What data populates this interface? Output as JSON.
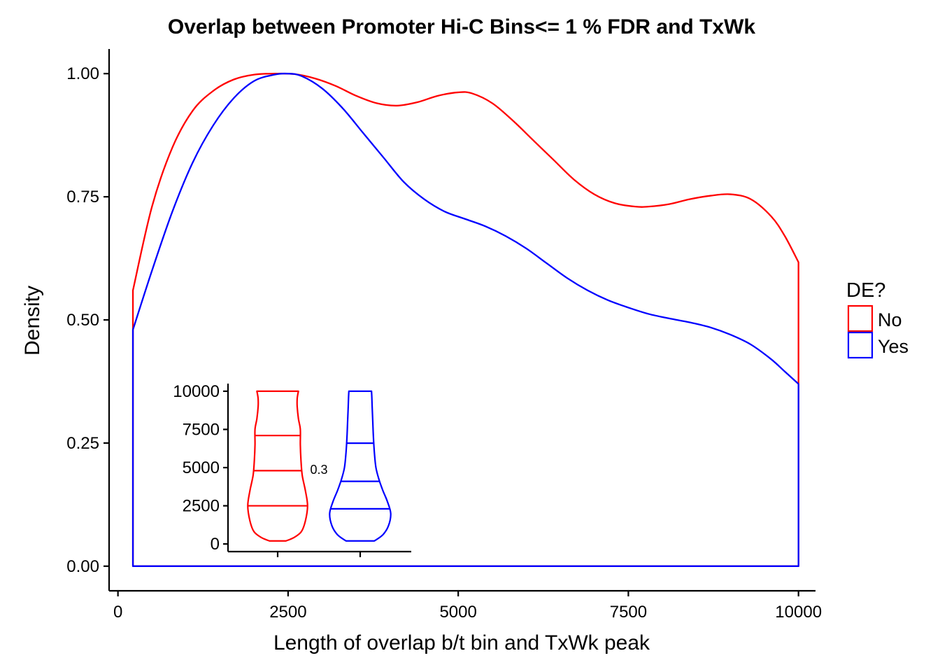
{
  "chart_data": [
    {
      "type": "area",
      "title": "Overlap between Promoter Hi-C Bins<= 1 % FDR and TxWk",
      "xlabel": "Length of overlap b/t bin and TxWk peak",
      "ylabel": "Density",
      "xlim": [
        -130,
        10250
      ],
      "ylim": [
        -0.05,
        1.05
      ],
      "xticks": [
        0,
        2500,
        5000,
        7500,
        10000
      ],
      "xtick_labels": [
        "0",
        "2500",
        "5000",
        "7500",
        "10000"
      ],
      "yticks": [
        0,
        0.25,
        0.5,
        0.75,
        1.0
      ],
      "ytick_labels": [
        "0.00",
        "0.25",
        "0.50",
        "0.75",
        "1.00"
      ],
      "grid": false,
      "legend": {
        "title": "DE?",
        "position": "right"
      },
      "series": [
        {
          "name": "No",
          "color": "#ff0000",
          "x": [
            220,
            500,
            800,
            1100,
            1400,
            1700,
            2000,
            2300,
            2600,
            2900,
            3200,
            3500,
            3800,
            4100,
            4400,
            4700,
            5000,
            5200,
            5500,
            5800,
            6100,
            6400,
            6700,
            7000,
            7300,
            7600,
            7800,
            8100,
            8400,
            8700,
            9000,
            9300,
            9600,
            9800,
            10000
          ],
          "y": [
            0.56,
            0.73,
            0.85,
            0.925,
            0.965,
            0.988,
            0.998,
            1.0,
            0.999,
            0.99,
            0.975,
            0.955,
            0.94,
            0.935,
            0.942,
            0.955,
            0.962,
            0.96,
            0.94,
            0.905,
            0.865,
            0.825,
            0.785,
            0.755,
            0.737,
            0.73,
            0.73,
            0.735,
            0.745,
            0.752,
            0.755,
            0.745,
            0.71,
            0.67,
            0.617
          ]
        },
        {
          "name": "Yes",
          "color": "#0000ff",
          "x": [
            220,
            500,
            800,
            1100,
            1400,
            1700,
            2000,
            2300,
            2500,
            2700,
            3000,
            3300,
            3600,
            3900,
            4200,
            4500,
            4800,
            5100,
            5400,
            5700,
            6000,
            6300,
            6600,
            6900,
            7200,
            7500,
            7800,
            8100,
            8400,
            8700,
            9000,
            9300,
            9600,
            9800,
            10000
          ],
          "y": [
            0.48,
            0.6,
            0.72,
            0.82,
            0.895,
            0.95,
            0.985,
            0.998,
            1.0,
            0.995,
            0.97,
            0.93,
            0.88,
            0.83,
            0.78,
            0.745,
            0.72,
            0.705,
            0.69,
            0.67,
            0.645,
            0.615,
            0.585,
            0.56,
            0.54,
            0.525,
            0.512,
            0.503,
            0.495,
            0.485,
            0.47,
            0.45,
            0.42,
            0.395,
            0.37
          ]
        }
      ]
    },
    {
      "type": "violin",
      "ylim": [
        -500,
        10500
      ],
      "yticks": [
        0,
        2500,
        5000,
        7500,
        10000
      ],
      "ytick_labels": [
        "0",
        "2500",
        "5000",
        "7500",
        "10000"
      ],
      "annotation": "0.3",
      "violins": [
        {
          "group": "No",
          "color": "#ff0000",
          "quantiles": [
            2500,
            4800,
            7100
          ],
          "profile_y": [
            200,
            400,
            800,
            1500,
            2500,
            3500,
            4500,
            5500,
            6500,
            7500,
            8200,
            9000,
            9500,
            9800,
            10000
          ],
          "profile_halfwidth": [
            0.26,
            0.5,
            0.75,
            0.88,
            0.95,
            0.88,
            0.78,
            0.74,
            0.72,
            0.72,
            0.66,
            0.62,
            0.62,
            0.64,
            0.66
          ]
        },
        {
          "group": "Yes",
          "color": "#0000ff",
          "quantiles": [
            2300,
            4100,
            6600
          ],
          "profile_y": [
            200,
            600,
            1200,
            2000,
            2800,
            3500,
            4200,
            5000,
            6000,
            7000,
            8000,
            9000,
            9600,
            10000
          ],
          "profile_halfwidth": [
            0.45,
            0.72,
            0.9,
            0.97,
            0.86,
            0.72,
            0.6,
            0.5,
            0.45,
            0.42,
            0.4,
            0.38,
            0.37,
            0.36
          ]
        }
      ]
    }
  ]
}
